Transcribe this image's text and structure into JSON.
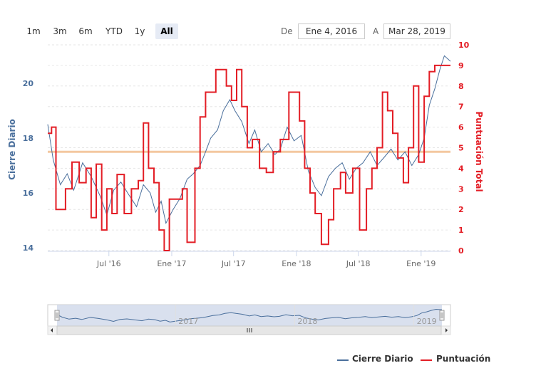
{
  "range_selector": {
    "buttons": [
      "1m",
      "3m",
      "6m",
      "YTD",
      "1y",
      "All"
    ],
    "active": "All",
    "from_label": "De",
    "from_value": "Ene 4, 2016",
    "to_label": "A",
    "to_value": "Mar 28, 2019"
  },
  "legend": {
    "cierre": "Cierre Diario",
    "puntuacion": "Puntuación"
  },
  "colors": {
    "cierre": "#4a6f9c",
    "puntuacion": "#e31d25",
    "threshold": "#f4c8a0",
    "navigator_fill": "#cfd8ea"
  },
  "chart_data": {
    "type": "line",
    "x_tick_labels": [
      "Jul '16",
      "Ene '17",
      "Jul '17",
      "Ene '18",
      "Jul '18",
      "Ene '19"
    ],
    "navigator_labels": [
      "2017",
      "2018",
      "2019"
    ],
    "y_axis_left": {
      "label": "Cierre Diario",
      "ticks": [
        14,
        16,
        18,
        20
      ],
      "range": [
        13.9,
        21.4
      ]
    },
    "y_axis_right": {
      "label": "Puntuación Total",
      "ticks": [
        0,
        1,
        2,
        3,
        4,
        5,
        6,
        7,
        8,
        9,
        10
      ],
      "range": [
        0,
        10
      ]
    },
    "threshold": {
      "axis": "right",
      "value": 4.8
    },
    "x_range": [
      "2016-01-04",
      "2019-03-28"
    ],
    "series": [
      {
        "name": "Cierre Diario",
        "axis": "left",
        "points": [
          [
            "2016-01-04",
            18.5
          ],
          [
            "2016-01-20",
            17.2
          ],
          [
            "2016-02-10",
            16.3
          ],
          [
            "2016-03-01",
            16.7
          ],
          [
            "2016-03-20",
            16.1
          ],
          [
            "2016-04-15",
            17.1
          ],
          [
            "2016-05-10",
            16.6
          ],
          [
            "2016-06-05",
            15.9
          ],
          [
            "2016-06-25",
            15.2
          ],
          [
            "2016-07-15",
            16.1
          ],
          [
            "2016-08-05",
            16.4
          ],
          [
            "2016-08-25",
            16.0
          ],
          [
            "2016-09-20",
            15.5
          ],
          [
            "2016-10-10",
            16.3
          ],
          [
            "2016-10-30",
            16.0
          ],
          [
            "2016-11-15",
            15.3
          ],
          [
            "2016-12-01",
            15.7
          ],
          [
            "2016-12-15",
            14.9
          ],
          [
            "2017-01-05",
            15.4
          ],
          [
            "2017-01-25",
            15.8
          ],
          [
            "2017-02-15",
            16.5
          ],
          [
            "2017-03-05",
            16.7
          ],
          [
            "2017-03-25",
            17.0
          ],
          [
            "2017-04-10",
            17.5
          ],
          [
            "2017-04-25",
            18.0
          ],
          [
            "2017-05-15",
            18.3
          ],
          [
            "2017-06-01",
            19.0
          ],
          [
            "2017-06-20",
            19.4
          ],
          [
            "2017-07-05",
            19.0
          ],
          [
            "2017-07-25",
            18.6
          ],
          [
            "2017-08-15",
            17.8
          ],
          [
            "2017-09-01",
            18.3
          ],
          [
            "2017-09-20",
            17.5
          ],
          [
            "2017-10-10",
            17.8
          ],
          [
            "2017-10-30",
            17.4
          ],
          [
            "2017-11-15",
            17.6
          ],
          [
            "2017-12-05",
            18.4
          ],
          [
            "2017-12-25",
            17.9
          ],
          [
            "2018-01-15",
            18.1
          ],
          [
            "2018-02-05",
            16.8
          ],
          [
            "2018-02-25",
            16.2
          ],
          [
            "2018-03-15",
            15.9
          ],
          [
            "2018-04-05",
            16.6
          ],
          [
            "2018-04-25",
            16.9
          ],
          [
            "2018-05-15",
            17.1
          ],
          [
            "2018-06-05",
            16.5
          ],
          [
            "2018-06-25",
            16.9
          ],
          [
            "2018-07-15",
            17.1
          ],
          [
            "2018-08-05",
            17.5
          ],
          [
            "2018-08-25",
            17.0
          ],
          [
            "2018-09-15",
            17.3
          ],
          [
            "2018-10-05",
            17.6
          ],
          [
            "2018-10-25",
            17.2
          ],
          [
            "2018-11-15",
            17.5
          ],
          [
            "2018-12-05",
            17.0
          ],
          [
            "2018-12-25",
            17.4
          ],
          [
            "2019-01-10",
            18.0
          ],
          [
            "2019-01-25",
            19.2
          ],
          [
            "2019-02-10",
            19.8
          ],
          [
            "2019-02-25",
            20.5
          ],
          [
            "2019-03-10",
            21.0
          ],
          [
            "2019-03-28",
            20.8
          ]
        ]
      },
      {
        "name": "Puntuación",
        "axis": "right",
        "points": [
          [
            "2016-01-04",
            5.7
          ],
          [
            "2016-01-15",
            6.0
          ],
          [
            "2016-01-28",
            2.0
          ],
          [
            "2016-02-25",
            3.0
          ],
          [
            "2016-03-15",
            4.3
          ],
          [
            "2016-04-05",
            3.3
          ],
          [
            "2016-04-25",
            4.0
          ],
          [
            "2016-05-10",
            1.6
          ],
          [
            "2016-05-25",
            4.2
          ],
          [
            "2016-06-10",
            1.0
          ],
          [
            "2016-06-25",
            3.0
          ],
          [
            "2016-07-10",
            1.8
          ],
          [
            "2016-07-25",
            3.7
          ],
          [
            "2016-08-15",
            1.8
          ],
          [
            "2016-09-05",
            3.0
          ],
          [
            "2016-09-25",
            3.4
          ],
          [
            "2016-10-10",
            6.2
          ],
          [
            "2016-10-25",
            4.0
          ],
          [
            "2016-11-10",
            3.3
          ],
          [
            "2016-11-25",
            1.0
          ],
          [
            "2016-12-10",
            0.0
          ],
          [
            "2016-12-25",
            2.5
          ],
          [
            "2017-01-15",
            2.5
          ],
          [
            "2017-02-01",
            3.0
          ],
          [
            "2017-02-15",
            0.4
          ],
          [
            "2017-03-10",
            4.0
          ],
          [
            "2017-03-25",
            6.5
          ],
          [
            "2017-04-10",
            7.7
          ],
          [
            "2017-05-10",
            8.8
          ],
          [
            "2017-06-10",
            8.0
          ],
          [
            "2017-06-25",
            7.3
          ],
          [
            "2017-07-10",
            8.8
          ],
          [
            "2017-07-25",
            7.0
          ],
          [
            "2017-08-10",
            5.0
          ],
          [
            "2017-08-25",
            5.4
          ],
          [
            "2017-09-15",
            4.0
          ],
          [
            "2017-10-05",
            3.8
          ],
          [
            "2017-10-25",
            4.8
          ],
          [
            "2017-11-15",
            5.4
          ],
          [
            "2017-12-10",
            7.7
          ],
          [
            "2018-01-10",
            6.3
          ],
          [
            "2018-01-25",
            4.0
          ],
          [
            "2018-02-10",
            2.8
          ],
          [
            "2018-02-25",
            1.8
          ],
          [
            "2018-03-15",
            0.3
          ],
          [
            "2018-04-05",
            1.5
          ],
          [
            "2018-04-20",
            3.0
          ],
          [
            "2018-05-10",
            3.8
          ],
          [
            "2018-05-25",
            2.8
          ],
          [
            "2018-06-15",
            4.0
          ],
          [
            "2018-07-05",
            1.0
          ],
          [
            "2018-07-25",
            3.0
          ],
          [
            "2018-08-10",
            4.0
          ],
          [
            "2018-08-25",
            5.0
          ],
          [
            "2018-09-10",
            7.7
          ],
          [
            "2018-09-25",
            6.8
          ],
          [
            "2018-10-10",
            5.7
          ],
          [
            "2018-10-25",
            4.5
          ],
          [
            "2018-11-10",
            3.3
          ],
          [
            "2018-11-25",
            5.0
          ],
          [
            "2018-12-10",
            8.0
          ],
          [
            "2018-12-25",
            4.3
          ],
          [
            "2019-01-10",
            7.5
          ],
          [
            "2019-01-25",
            8.7
          ],
          [
            "2019-02-10",
            9.0
          ],
          [
            "2019-03-28",
            9.0
          ]
        ]
      }
    ]
  }
}
